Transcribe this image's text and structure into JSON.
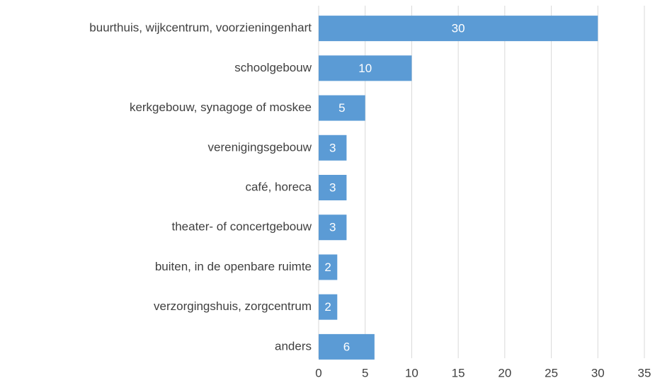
{
  "chart_data": {
    "type": "bar",
    "orientation": "horizontal",
    "categories": [
      "buurthuis, wijkcentrum, voorzieningenhart",
      "schoolgebouw",
      "kerkgebouw, synagoge of moskee",
      "verenigingsgebouw",
      "café, horeca",
      "theater- of concertgebouw",
      "buiten, in de openbare ruimte",
      "verzorgingshuis, zorgcentrum",
      "anders"
    ],
    "values": [
      30,
      10,
      5,
      3,
      3,
      3,
      2,
      2,
      6
    ],
    "color": "#5b9bd5",
    "xlim": [
      0,
      35
    ],
    "xticks": [
      0,
      5,
      10,
      15,
      20,
      25,
      30,
      35
    ],
    "grid": true
  }
}
